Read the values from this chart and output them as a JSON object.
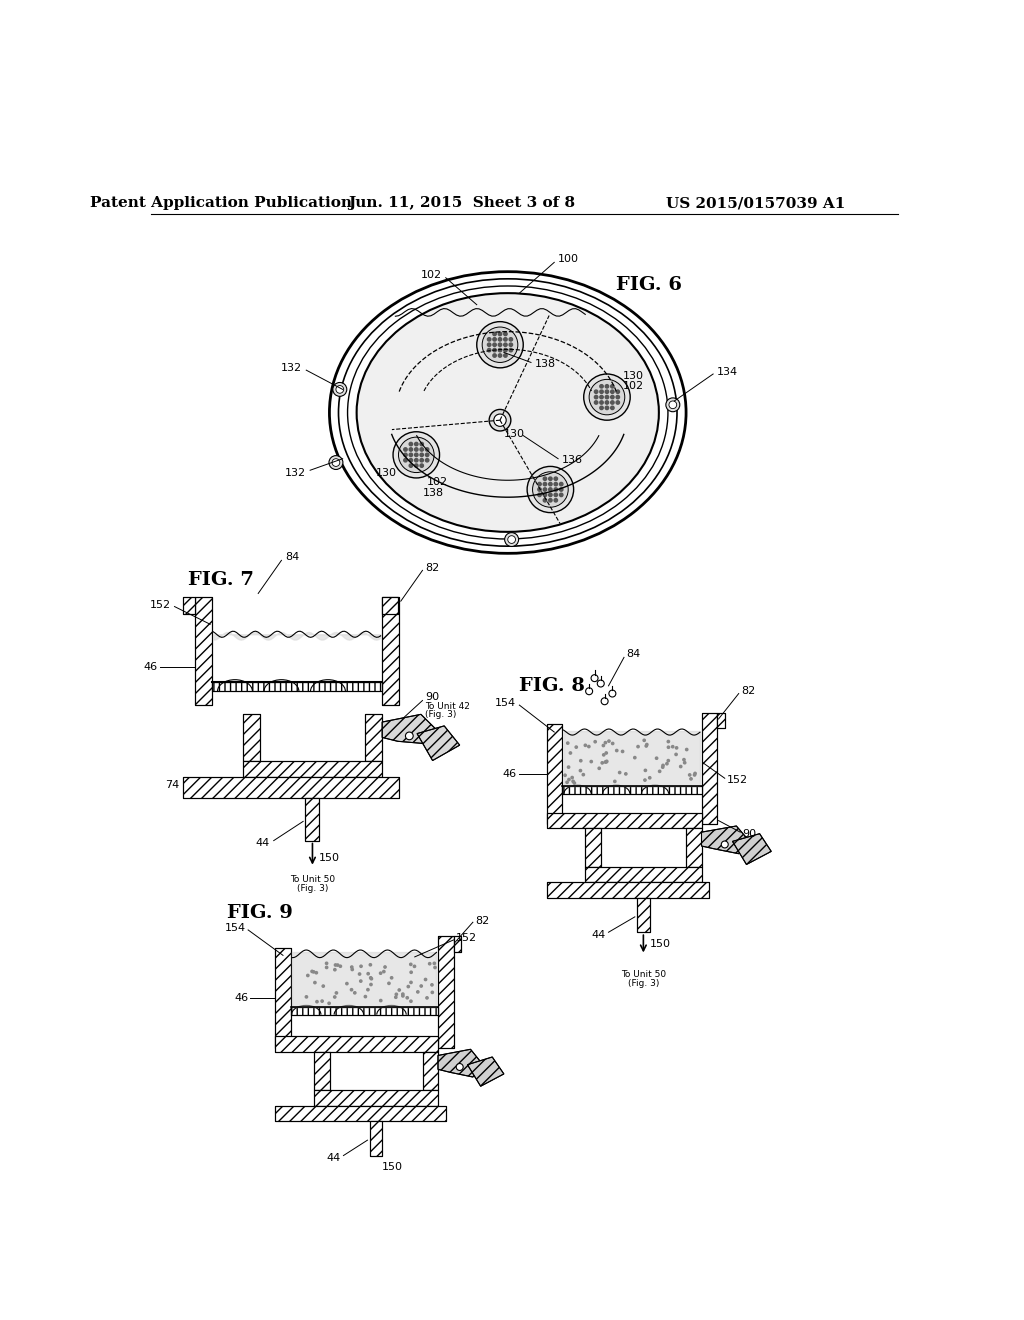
{
  "background_color": "#ffffff",
  "header_left": "Patent Application Publication",
  "header_center": "Jun. 11, 2015  Sheet 3 of 8",
  "header_right": "US 2015/0157039 A1",
  "fig6_label": "FIG. 6",
  "fig7_label": "FIG. 7",
  "fig8_label": "FIG. 8",
  "fig9_label": "FIG. 9",
  "line_color": "#000000",
  "text_color": "#000000",
  "header_fontsize": 11,
  "label_fontsize": 14,
  "annotation_fontsize": 8
}
